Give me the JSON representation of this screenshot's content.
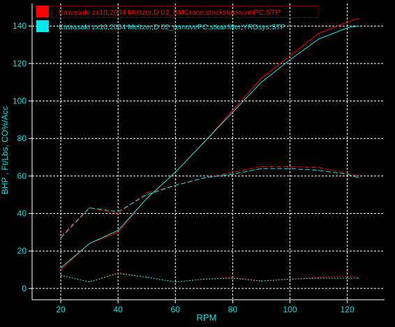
{
  "chart_data": {
    "type": "line",
    "xlabel": "RPM",
    "ylabel": "BHP , Ft/Lbs, CO%/Acc",
    "xlim": [
      10,
      133
    ],
    "ylim": [
      -6,
      152
    ],
    "x_ticks": [
      20,
      40,
      60,
      80,
      100,
      120
    ],
    "y_ticks": [
      0,
      20,
      40,
      60,
      80,
      100,
      120,
      140
    ],
    "grid": true,
    "legend_position": "top-left",
    "series": [
      {
        "name": "Kawasaki   zx10,2004   Meltzer,D   03_BMCrace,stockstacks,noPC.STP",
        "color": "#ff0000",
        "curves": [
          {
            "role": "power",
            "style": "solid",
            "points": [
              [
                20,
                10
              ],
              [
                30,
                24
              ],
              [
                40,
                30
              ],
              [
                50,
                48
              ],
              [
                60,
                62
              ],
              [
                70,
                78
              ],
              [
                80,
                95
              ],
              [
                90,
                112
              ],
              [
                100,
                124
              ],
              [
                110,
                136
              ],
              [
                120,
                142
              ],
              [
                124,
                144
              ]
            ]
          },
          {
            "role": "torque",
            "style": "dashed",
            "points": [
              [
                20,
                28
              ],
              [
                30,
                43
              ],
              [
                40,
                40
              ],
              [
                50,
                51
              ],
              [
                60,
                55
              ],
              [
                70,
                59
              ],
              [
                80,
                62
              ],
              [
                90,
                65
              ],
              [
                100,
                65
              ],
              [
                110,
                64.5
              ],
              [
                120,
                61.5
              ],
              [
                124,
                60
              ]
            ]
          },
          {
            "role": "co-acc",
            "style": "dashed",
            "points": [
              [
                20,
                7
              ],
              [
                30,
                3.5
              ],
              [
                40,
                8.5
              ],
              [
                50,
                6
              ],
              [
                60,
                3.5
              ],
              [
                70,
                5
              ],
              [
                80,
                6
              ],
              [
                90,
                4
              ],
              [
                100,
                5
              ],
              [
                110,
                6
              ],
              [
                120,
                6.5
              ],
              [
                124,
                6
              ]
            ]
          }
        ]
      },
      {
        "name": "Kawasaki   zx10,2004   Meltzer,D   02_removePC,stkairfilter,YRDsys.STP",
        "color": "#00e8e8",
        "curves": [
          {
            "role": "power",
            "style": "solid",
            "points": [
              [
                20,
                11
              ],
              [
                30,
                24
              ],
              [
                40,
                31
              ],
              [
                50,
                48
              ],
              [
                60,
                62
              ],
              [
                70,
                78
              ],
              [
                80,
                94
              ],
              [
                90,
                110
              ],
              [
                100,
                122
              ],
              [
                110,
                133
              ],
              [
                120,
                139
              ],
              [
                124,
                140
              ]
            ]
          },
          {
            "role": "torque",
            "style": "dashed",
            "points": [
              [
                20,
                27
              ],
              [
                30,
                43
              ],
              [
                40,
                41
              ],
              [
                50,
                50
              ],
              [
                60,
                55
              ],
              [
                70,
                59
              ],
              [
                80,
                61
              ],
              [
                90,
                64
              ],
              [
                100,
                64
              ],
              [
                110,
                63
              ],
              [
                120,
                61
              ],
              [
                124,
                59
              ]
            ]
          },
          {
            "role": "co-acc",
            "style": "dashed",
            "points": [
              [
                20,
                7
              ],
              [
                30,
                3.5
              ],
              [
                40,
                8
              ],
              [
                50,
                6
              ],
              [
                60,
                3.5
              ],
              [
                70,
                5
              ],
              [
                80,
                5.5
              ],
              [
                90,
                4
              ],
              [
                100,
                5
              ],
              [
                110,
                5.5
              ],
              [
                120,
                5.5
              ],
              [
                124,
                5.5
              ]
            ]
          }
        ]
      }
    ]
  }
}
